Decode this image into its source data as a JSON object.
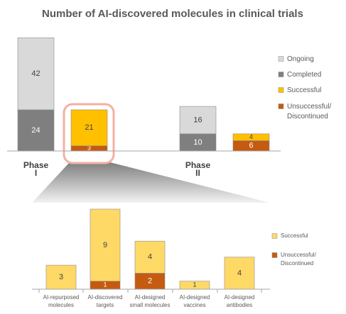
{
  "chart_data": [
    {
      "type": "bar",
      "stacked": true,
      "title": "Number of AI-discovered molecules in clinical trials",
      "categories": [
        "Phase I",
        null,
        "Phase II",
        null
      ],
      "series": [
        {
          "name": "Ongoing",
          "color": "#d9d9d9",
          "values": [
            42,
            null,
            16,
            null
          ]
        },
        {
          "name": "Completed",
          "color": "#7f7f7f",
          "values": [
            24,
            null,
            10,
            null
          ]
        },
        {
          "name": "Successful",
          "color": "#ffc000",
          "values": [
            null,
            21,
            null,
            4
          ]
        },
        {
          "name": "Unsuccessful/ Discontinued",
          "color": "#c55a11",
          "values": [
            null,
            3,
            null,
            6
          ]
        }
      ]
    },
    {
      "type": "bar",
      "stacked": true,
      "categories": [
        "AI-repurposed molecules",
        "AI-discovered targets",
        "AI-designed small molecules",
        "AI-designed vaccines",
        "AI-designed antibodies"
      ],
      "series": [
        {
          "name": "Successful",
          "color": "#ffd966",
          "values": [
            3,
            9,
            4,
            1,
            4
          ]
        },
        {
          "name": "Unsuccessful/ Discontinued",
          "color": "#c55a11",
          "values": [
            null,
            1,
            2,
            null,
            null
          ]
        }
      ]
    }
  ]
}
